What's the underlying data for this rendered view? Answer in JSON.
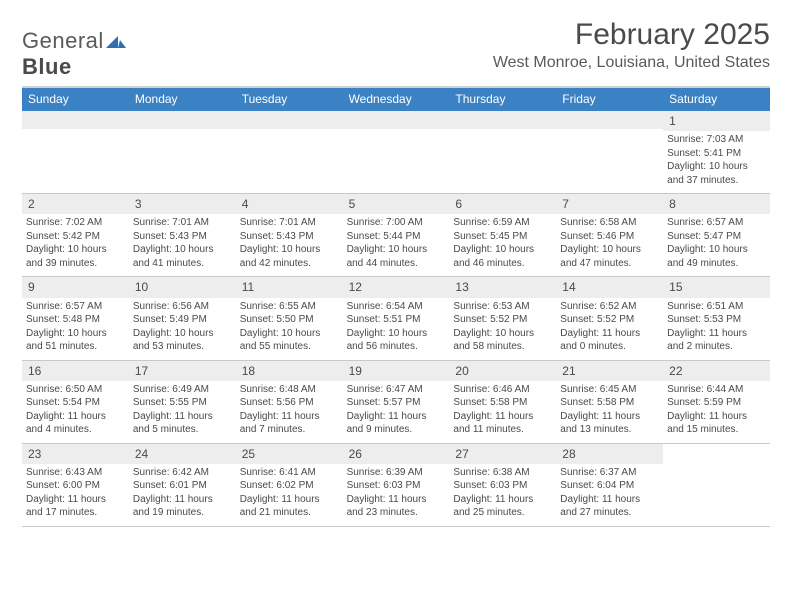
{
  "brand": {
    "name1": "General",
    "name2": "Blue",
    "mark_color": "#2f6fb0"
  },
  "title": "February 2025",
  "location": "West Monroe, Louisiana, United States",
  "colors": {
    "header_bg": "#3b82c4",
    "header_text": "#ffffff",
    "daynum_bg": "#ededed",
    "border": "#c8c8c8",
    "text": "#4a4a4a"
  },
  "typography": {
    "title_fontsize": 30,
    "location_fontsize": 16,
    "dow_fontsize": 12,
    "cell_fontsize": 10
  },
  "layout": {
    "columns": 7,
    "rows": 5,
    "type": "calendar"
  },
  "days_of_week": [
    "Sunday",
    "Monday",
    "Tuesday",
    "Wednesday",
    "Thursday",
    "Friday",
    "Saturday"
  ],
  "weeks": [
    [
      {
        "empty": true
      },
      {
        "empty": true
      },
      {
        "empty": true
      },
      {
        "empty": true
      },
      {
        "empty": true
      },
      {
        "empty": true
      },
      {
        "day": "1",
        "sunrise": "Sunrise: 7:03 AM",
        "sunset": "Sunset: 5:41 PM",
        "daylight": "Daylight: 10 hours and 37 minutes."
      }
    ],
    [
      {
        "day": "2",
        "sunrise": "Sunrise: 7:02 AM",
        "sunset": "Sunset: 5:42 PM",
        "daylight": "Daylight: 10 hours and 39 minutes."
      },
      {
        "day": "3",
        "sunrise": "Sunrise: 7:01 AM",
        "sunset": "Sunset: 5:43 PM",
        "daylight": "Daylight: 10 hours and 41 minutes."
      },
      {
        "day": "4",
        "sunrise": "Sunrise: 7:01 AM",
        "sunset": "Sunset: 5:43 PM",
        "daylight": "Daylight: 10 hours and 42 minutes."
      },
      {
        "day": "5",
        "sunrise": "Sunrise: 7:00 AM",
        "sunset": "Sunset: 5:44 PM",
        "daylight": "Daylight: 10 hours and 44 minutes."
      },
      {
        "day": "6",
        "sunrise": "Sunrise: 6:59 AM",
        "sunset": "Sunset: 5:45 PM",
        "daylight": "Daylight: 10 hours and 46 minutes."
      },
      {
        "day": "7",
        "sunrise": "Sunrise: 6:58 AM",
        "sunset": "Sunset: 5:46 PM",
        "daylight": "Daylight: 10 hours and 47 minutes."
      },
      {
        "day": "8",
        "sunrise": "Sunrise: 6:57 AM",
        "sunset": "Sunset: 5:47 PM",
        "daylight": "Daylight: 10 hours and 49 minutes."
      }
    ],
    [
      {
        "day": "9",
        "sunrise": "Sunrise: 6:57 AM",
        "sunset": "Sunset: 5:48 PM",
        "daylight": "Daylight: 10 hours and 51 minutes."
      },
      {
        "day": "10",
        "sunrise": "Sunrise: 6:56 AM",
        "sunset": "Sunset: 5:49 PM",
        "daylight": "Daylight: 10 hours and 53 minutes."
      },
      {
        "day": "11",
        "sunrise": "Sunrise: 6:55 AM",
        "sunset": "Sunset: 5:50 PM",
        "daylight": "Daylight: 10 hours and 55 minutes."
      },
      {
        "day": "12",
        "sunrise": "Sunrise: 6:54 AM",
        "sunset": "Sunset: 5:51 PM",
        "daylight": "Daylight: 10 hours and 56 minutes."
      },
      {
        "day": "13",
        "sunrise": "Sunrise: 6:53 AM",
        "sunset": "Sunset: 5:52 PM",
        "daylight": "Daylight: 10 hours and 58 minutes."
      },
      {
        "day": "14",
        "sunrise": "Sunrise: 6:52 AM",
        "sunset": "Sunset: 5:52 PM",
        "daylight": "Daylight: 11 hours and 0 minutes."
      },
      {
        "day": "15",
        "sunrise": "Sunrise: 6:51 AM",
        "sunset": "Sunset: 5:53 PM",
        "daylight": "Daylight: 11 hours and 2 minutes."
      }
    ],
    [
      {
        "day": "16",
        "sunrise": "Sunrise: 6:50 AM",
        "sunset": "Sunset: 5:54 PM",
        "daylight": "Daylight: 11 hours and 4 minutes."
      },
      {
        "day": "17",
        "sunrise": "Sunrise: 6:49 AM",
        "sunset": "Sunset: 5:55 PM",
        "daylight": "Daylight: 11 hours and 5 minutes."
      },
      {
        "day": "18",
        "sunrise": "Sunrise: 6:48 AM",
        "sunset": "Sunset: 5:56 PM",
        "daylight": "Daylight: 11 hours and 7 minutes."
      },
      {
        "day": "19",
        "sunrise": "Sunrise: 6:47 AM",
        "sunset": "Sunset: 5:57 PM",
        "daylight": "Daylight: 11 hours and 9 minutes."
      },
      {
        "day": "20",
        "sunrise": "Sunrise: 6:46 AM",
        "sunset": "Sunset: 5:58 PM",
        "daylight": "Daylight: 11 hours and 11 minutes."
      },
      {
        "day": "21",
        "sunrise": "Sunrise: 6:45 AM",
        "sunset": "Sunset: 5:58 PM",
        "daylight": "Daylight: 11 hours and 13 minutes."
      },
      {
        "day": "22",
        "sunrise": "Sunrise: 6:44 AM",
        "sunset": "Sunset: 5:59 PM",
        "daylight": "Daylight: 11 hours and 15 minutes."
      }
    ],
    [
      {
        "day": "23",
        "sunrise": "Sunrise: 6:43 AM",
        "sunset": "Sunset: 6:00 PM",
        "daylight": "Daylight: 11 hours and 17 minutes."
      },
      {
        "day": "24",
        "sunrise": "Sunrise: 6:42 AM",
        "sunset": "Sunset: 6:01 PM",
        "daylight": "Daylight: 11 hours and 19 minutes."
      },
      {
        "day": "25",
        "sunrise": "Sunrise: 6:41 AM",
        "sunset": "Sunset: 6:02 PM",
        "daylight": "Daylight: 11 hours and 21 minutes."
      },
      {
        "day": "26",
        "sunrise": "Sunrise: 6:39 AM",
        "sunset": "Sunset: 6:03 PM",
        "daylight": "Daylight: 11 hours and 23 minutes."
      },
      {
        "day": "27",
        "sunrise": "Sunrise: 6:38 AM",
        "sunset": "Sunset: 6:03 PM",
        "daylight": "Daylight: 11 hours and 25 minutes."
      },
      {
        "day": "28",
        "sunrise": "Sunrise: 6:37 AM",
        "sunset": "Sunset: 6:04 PM",
        "daylight": "Daylight: 11 hours and 27 minutes."
      },
      {
        "empty": true,
        "no_bar": true
      }
    ]
  ]
}
